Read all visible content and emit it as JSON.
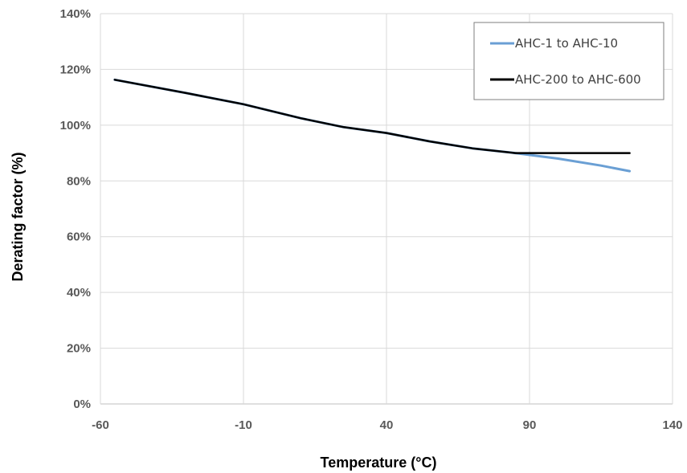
{
  "chart_data": {
    "type": "line",
    "xlabel": "Temperature (°C)",
    "ylabel": "Derating factor (%)",
    "xlim": [
      -60,
      140
    ],
    "ylim": [
      0,
      140
    ],
    "x_ticks": [
      -60,
      -10,
      40,
      90,
      140
    ],
    "y_ticks": [
      0,
      20,
      40,
      60,
      80,
      100,
      120,
      140
    ],
    "x_tick_labels": [
      "-60",
      "-10",
      "40",
      "90",
      "140"
    ],
    "y_tick_labels": [
      "0%",
      "20%",
      "40%",
      "60%",
      "80%",
      "100%",
      "120%",
      "140%"
    ],
    "grid": true,
    "legend_position": "top-right",
    "series": [
      {
        "name": "AHC-1 to AHC-10",
        "color": "#6a9fd4",
        "points": [
          [
            -55,
            116.3
          ],
          [
            -30,
            111.5
          ],
          [
            -10,
            107.5
          ],
          [
            10,
            102.5
          ],
          [
            25,
            99.3
          ],
          [
            40,
            97.2
          ],
          [
            55,
            94.2
          ],
          [
            70,
            91.7
          ],
          [
            85,
            90.0
          ],
          [
            100,
            88.0
          ],
          [
            115,
            85.5
          ],
          [
            125,
            83.5
          ]
        ]
      },
      {
        "name": "AHC-200 to AHC-600",
        "color": "#000000",
        "points": [
          [
            -55,
            116.3
          ],
          [
            -30,
            111.5
          ],
          [
            -10,
            107.5
          ],
          [
            10,
            102.5
          ],
          [
            25,
            99.3
          ],
          [
            40,
            97.2
          ],
          [
            55,
            94.2
          ],
          [
            70,
            91.7
          ],
          [
            85,
            90.0
          ],
          [
            90,
            90.0
          ],
          [
            105,
            90.0
          ],
          [
            125,
            90.0
          ]
        ]
      }
    ]
  }
}
